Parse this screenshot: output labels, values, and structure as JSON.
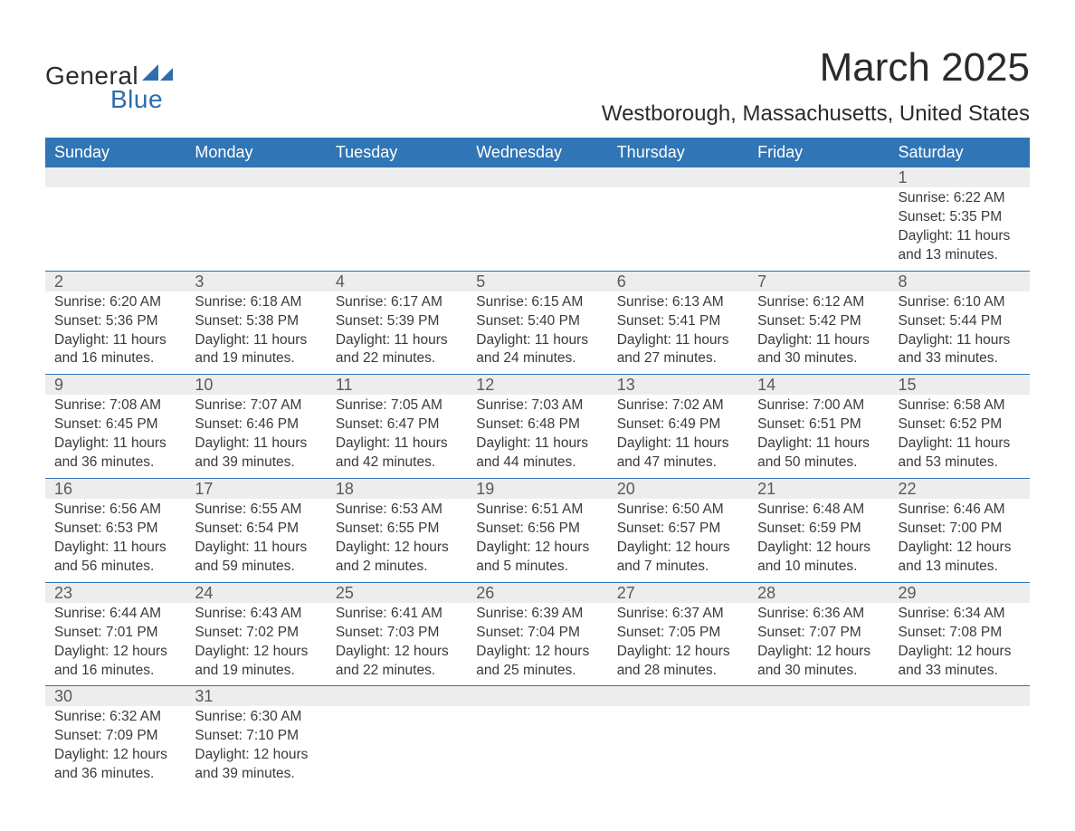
{
  "logo": {
    "text_general": "General",
    "text_blue": "Blue",
    "accent_color": "#2f6dad"
  },
  "title": "March 2025",
  "location": "Westborough, Massachusetts, United States",
  "header_bg": "#3075b6",
  "daynum_bg": "#ededed",
  "days_of_week": [
    "Sunday",
    "Monday",
    "Tuesday",
    "Wednesday",
    "Thursday",
    "Friday",
    "Saturday"
  ],
  "weeks": [
    [
      null,
      null,
      null,
      null,
      null,
      null,
      {
        "num": "1",
        "sunrise": "Sunrise: 6:22 AM",
        "sunset": "Sunset: 5:35 PM",
        "daylight": "Daylight: 11 hours and 13 minutes."
      }
    ],
    [
      {
        "num": "2",
        "sunrise": "Sunrise: 6:20 AM",
        "sunset": "Sunset: 5:36 PM",
        "daylight": "Daylight: 11 hours and 16 minutes."
      },
      {
        "num": "3",
        "sunrise": "Sunrise: 6:18 AM",
        "sunset": "Sunset: 5:38 PM",
        "daylight": "Daylight: 11 hours and 19 minutes."
      },
      {
        "num": "4",
        "sunrise": "Sunrise: 6:17 AM",
        "sunset": "Sunset: 5:39 PM",
        "daylight": "Daylight: 11 hours and 22 minutes."
      },
      {
        "num": "5",
        "sunrise": "Sunrise: 6:15 AM",
        "sunset": "Sunset: 5:40 PM",
        "daylight": "Daylight: 11 hours and 24 minutes."
      },
      {
        "num": "6",
        "sunrise": "Sunrise: 6:13 AM",
        "sunset": "Sunset: 5:41 PM",
        "daylight": "Daylight: 11 hours and 27 minutes."
      },
      {
        "num": "7",
        "sunrise": "Sunrise: 6:12 AM",
        "sunset": "Sunset: 5:42 PM",
        "daylight": "Daylight: 11 hours and 30 minutes."
      },
      {
        "num": "8",
        "sunrise": "Sunrise: 6:10 AM",
        "sunset": "Sunset: 5:44 PM",
        "daylight": "Daylight: 11 hours and 33 minutes."
      }
    ],
    [
      {
        "num": "9",
        "sunrise": "Sunrise: 7:08 AM",
        "sunset": "Sunset: 6:45 PM",
        "daylight": "Daylight: 11 hours and 36 minutes."
      },
      {
        "num": "10",
        "sunrise": "Sunrise: 7:07 AM",
        "sunset": "Sunset: 6:46 PM",
        "daylight": "Daylight: 11 hours and 39 minutes."
      },
      {
        "num": "11",
        "sunrise": "Sunrise: 7:05 AM",
        "sunset": "Sunset: 6:47 PM",
        "daylight": "Daylight: 11 hours and 42 minutes."
      },
      {
        "num": "12",
        "sunrise": "Sunrise: 7:03 AM",
        "sunset": "Sunset: 6:48 PM",
        "daylight": "Daylight: 11 hours and 44 minutes."
      },
      {
        "num": "13",
        "sunrise": "Sunrise: 7:02 AM",
        "sunset": "Sunset: 6:49 PM",
        "daylight": "Daylight: 11 hours and 47 minutes."
      },
      {
        "num": "14",
        "sunrise": "Sunrise: 7:00 AM",
        "sunset": "Sunset: 6:51 PM",
        "daylight": "Daylight: 11 hours and 50 minutes."
      },
      {
        "num": "15",
        "sunrise": "Sunrise: 6:58 AM",
        "sunset": "Sunset: 6:52 PM",
        "daylight": "Daylight: 11 hours and 53 minutes."
      }
    ],
    [
      {
        "num": "16",
        "sunrise": "Sunrise: 6:56 AM",
        "sunset": "Sunset: 6:53 PM",
        "daylight": "Daylight: 11 hours and 56 minutes."
      },
      {
        "num": "17",
        "sunrise": "Sunrise: 6:55 AM",
        "sunset": "Sunset: 6:54 PM",
        "daylight": "Daylight: 11 hours and 59 minutes."
      },
      {
        "num": "18",
        "sunrise": "Sunrise: 6:53 AM",
        "sunset": "Sunset: 6:55 PM",
        "daylight": "Daylight: 12 hours and 2 minutes."
      },
      {
        "num": "19",
        "sunrise": "Sunrise: 6:51 AM",
        "sunset": "Sunset: 6:56 PM",
        "daylight": "Daylight: 12 hours and 5 minutes."
      },
      {
        "num": "20",
        "sunrise": "Sunrise: 6:50 AM",
        "sunset": "Sunset: 6:57 PM",
        "daylight": "Daylight: 12 hours and 7 minutes."
      },
      {
        "num": "21",
        "sunrise": "Sunrise: 6:48 AM",
        "sunset": "Sunset: 6:59 PM",
        "daylight": "Daylight: 12 hours and 10 minutes."
      },
      {
        "num": "22",
        "sunrise": "Sunrise: 6:46 AM",
        "sunset": "Sunset: 7:00 PM",
        "daylight": "Daylight: 12 hours and 13 minutes."
      }
    ],
    [
      {
        "num": "23",
        "sunrise": "Sunrise: 6:44 AM",
        "sunset": "Sunset: 7:01 PM",
        "daylight": "Daylight: 12 hours and 16 minutes."
      },
      {
        "num": "24",
        "sunrise": "Sunrise: 6:43 AM",
        "sunset": "Sunset: 7:02 PM",
        "daylight": "Daylight: 12 hours and 19 minutes."
      },
      {
        "num": "25",
        "sunrise": "Sunrise: 6:41 AM",
        "sunset": "Sunset: 7:03 PM",
        "daylight": "Daylight: 12 hours and 22 minutes."
      },
      {
        "num": "26",
        "sunrise": "Sunrise: 6:39 AM",
        "sunset": "Sunset: 7:04 PM",
        "daylight": "Daylight: 12 hours and 25 minutes."
      },
      {
        "num": "27",
        "sunrise": "Sunrise: 6:37 AM",
        "sunset": "Sunset: 7:05 PM",
        "daylight": "Daylight: 12 hours and 28 minutes."
      },
      {
        "num": "28",
        "sunrise": "Sunrise: 6:36 AM",
        "sunset": "Sunset: 7:07 PM",
        "daylight": "Daylight: 12 hours and 30 minutes."
      },
      {
        "num": "29",
        "sunrise": "Sunrise: 6:34 AM",
        "sunset": "Sunset: 7:08 PM",
        "daylight": "Daylight: 12 hours and 33 minutes."
      }
    ],
    [
      {
        "num": "30",
        "sunrise": "Sunrise: 6:32 AM",
        "sunset": "Sunset: 7:09 PM",
        "daylight": "Daylight: 12 hours and 36 minutes."
      },
      {
        "num": "31",
        "sunrise": "Sunrise: 6:30 AM",
        "sunset": "Sunset: 7:10 PM",
        "daylight": "Daylight: 12 hours and 39 minutes."
      },
      null,
      null,
      null,
      null,
      null
    ]
  ]
}
